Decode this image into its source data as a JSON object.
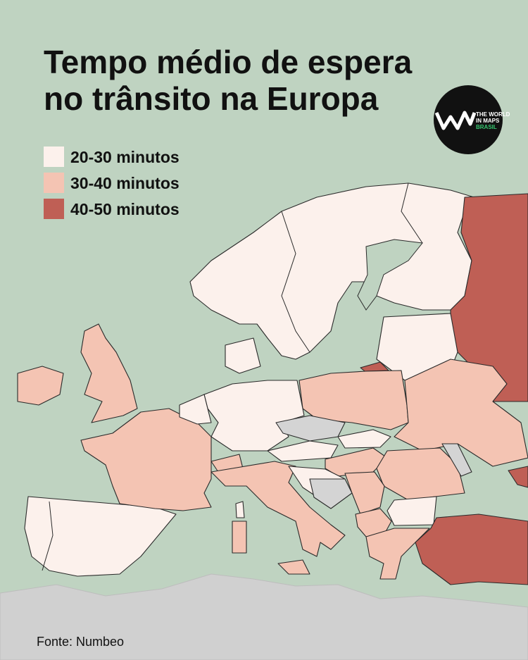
{
  "title_lines": [
    "Tempo médio de espera",
    "no trânsito na Europa"
  ],
  "legend": [
    {
      "label": "20-30 minutos",
      "color": "#fcf1ec"
    },
    {
      "label": "30-40 minutos",
      "color": "#f4c4b3"
    },
    {
      "label": "40-50 minutos",
      "color": "#bf5f55"
    }
  ],
  "no_data_color": "#d4d4d4",
  "logo": {
    "lines": [
      "THE WORLD",
      "IN MAPS",
      "BRASIL"
    ]
  },
  "source": "Fonte: Numbeo"
}
